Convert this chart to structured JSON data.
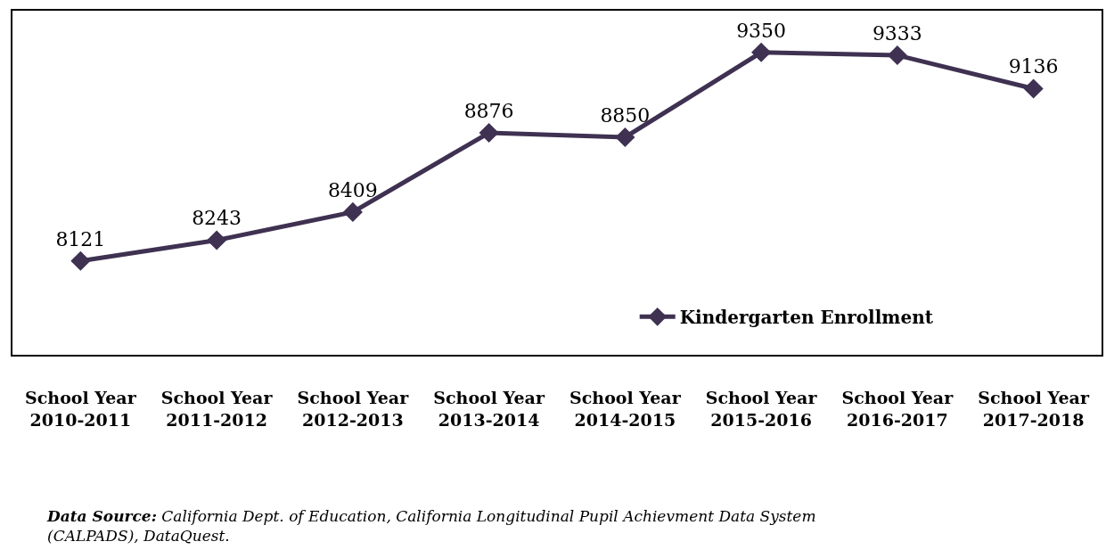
{
  "chart_data": {
    "type": "line",
    "categories": [
      "School Year\n2010-2011",
      "School Year\n2011-2012",
      "School Year\n2012-2013",
      "School Year\n2013-2014",
      "School Year\n2014-2015",
      "School Year\n2015-2016",
      "School Year\n2016-2017",
      "School Year\n2017-2018"
    ],
    "series": [
      {
        "name": "Kindergarten Enrollment",
        "color": "#3f3151",
        "values": [
          8121,
          8243,
          8409,
          8876,
          8850,
          9350,
          9333,
          9136
        ]
      }
    ],
    "data_labels": true,
    "marker": "diamond",
    "line_style": "solid",
    "legend": "bottom right",
    "annotations": [
      "Data Source: California Dept. of Education, California Longitudinal Pupil Achievment Data System\n(CALPADS), DataQuest."
    ]
  }
}
